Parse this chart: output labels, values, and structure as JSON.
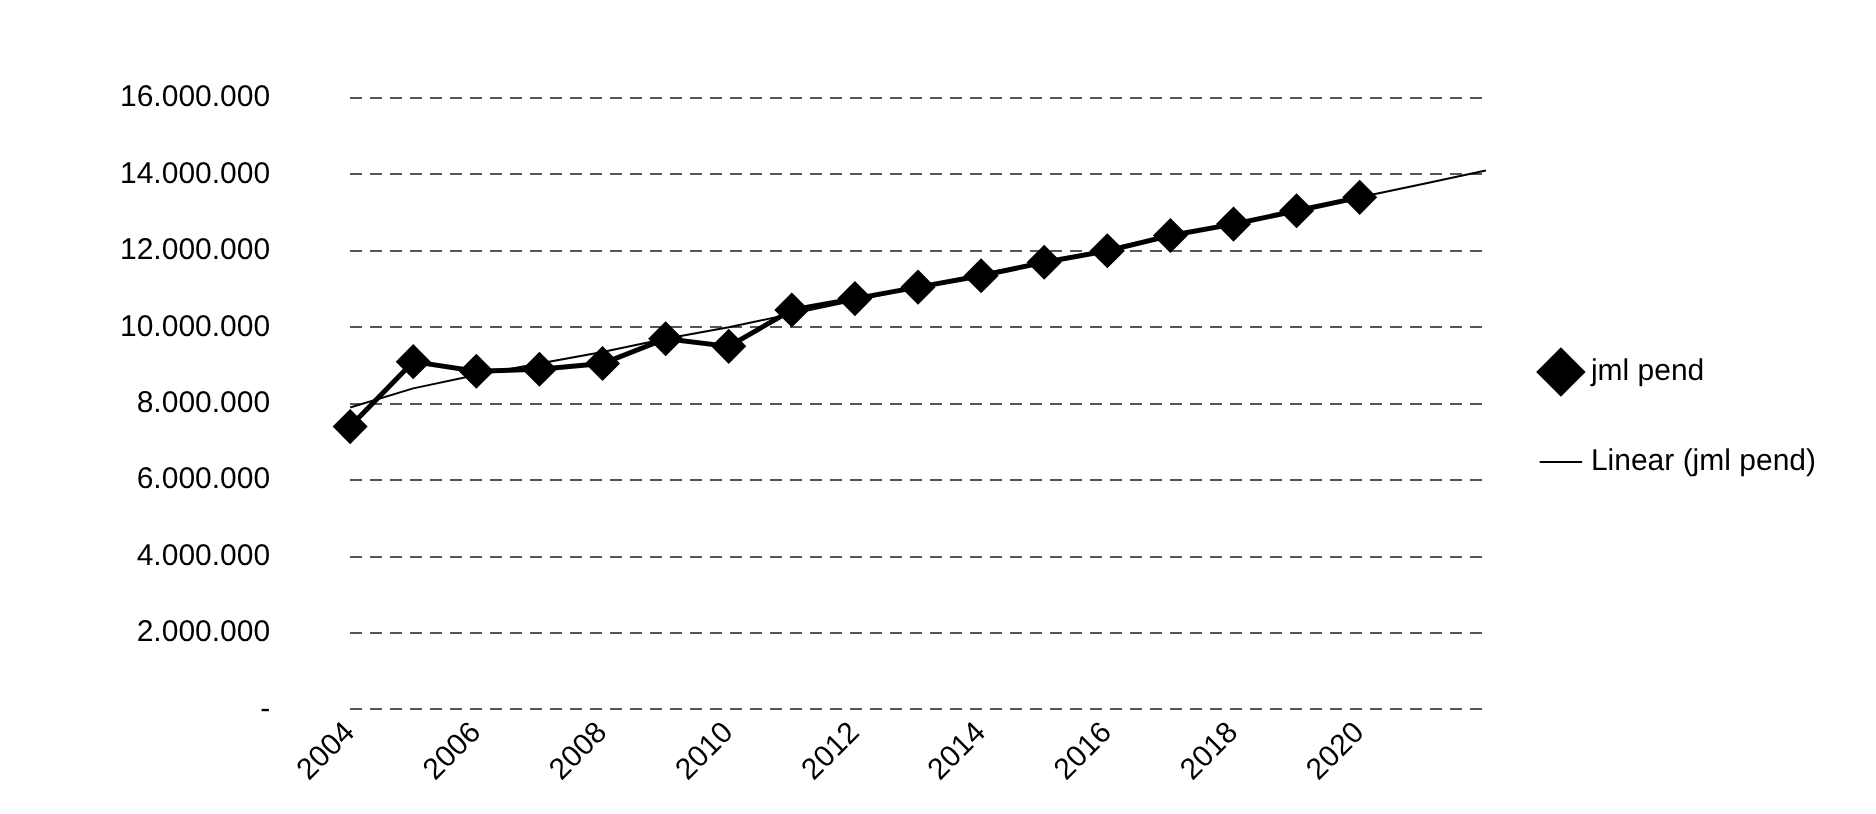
{
  "chart_data": {
    "type": "line",
    "categories": [
      "2004",
      null,
      "2006",
      null,
      "2008",
      null,
      "2010",
      null,
      "2012",
      null,
      "2014",
      null,
      "2016",
      null,
      "2018",
      null,
      "2020",
      null,
      null
    ],
    "series": [
      {
        "name": "jml pend",
        "color": "#000000",
        "marker": "diamond",
        "values": [
          7400000,
          9100000,
          8850000,
          8900000,
          9050000,
          9700000,
          9500000,
          10450000,
          10750000,
          11050000,
          11350000,
          11700000,
          12000000,
          12400000,
          12700000,
          13050000,
          13400000,
          null,
          null
        ]
      },
      {
        "name": "Linear (jml pend)",
        "color": "#000000",
        "marker": "none",
        "values": [
          7900000,
          8400000,
          8750000,
          9050000,
          9350000,
          9700000,
          10000000,
          10350000,
          10700000,
          11050000,
          11400000,
          11700000,
          12050000,
          12400000,
          12700000,
          13050000,
          13400000,
          13750000,
          14100000
        ]
      }
    ],
    "ylim": [
      0,
      16000000
    ],
    "yticks": [
      {
        "value": 0,
        "label": "-"
      },
      {
        "value": 2000000,
        "label": "2.000.000"
      },
      {
        "value": 4000000,
        "label": "4.000.000"
      },
      {
        "value": 6000000,
        "label": "6.000.000"
      },
      {
        "value": 8000000,
        "label": "8.000.000"
      },
      {
        "value": 10000000,
        "label": "10.000.000"
      },
      {
        "value": 12000000,
        "label": "12.000.000"
      },
      {
        "value": 14000000,
        "label": "14.000.000"
      },
      {
        "value": 16000000,
        "label": "16.000.000"
      }
    ],
    "grid": "y",
    "legend": "right",
    "line_style": "solid"
  }
}
